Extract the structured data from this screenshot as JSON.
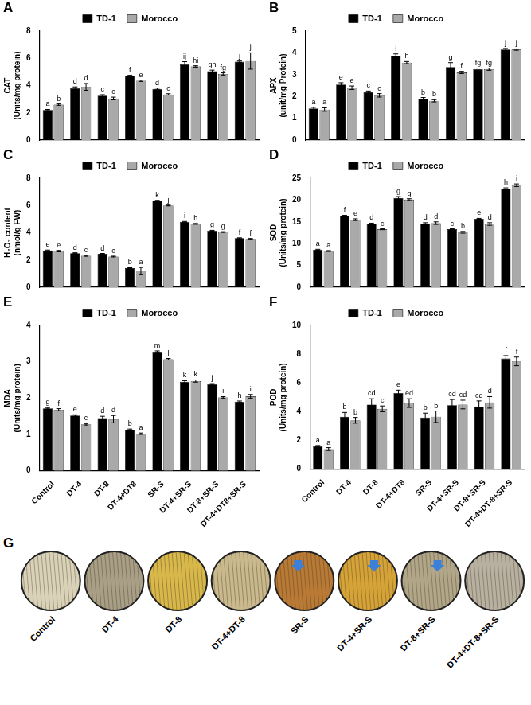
{
  "chart_data": [
    {
      "type": "bar",
      "panel": "A",
      "y_label": "CAT (Units/mg protein)",
      "categories": [
        null,
        null,
        null,
        null,
        null,
        null,
        null,
        null
      ],
      "series": [
        {
          "name": "TD-1",
          "color": "#000000",
          "values": [
            2.2,
            3.8,
            3.25,
            4.7,
            3.75,
            5.55,
            5.05,
            5.75
          ],
          "errors": [
            0.05,
            0.1,
            0.08,
            0.05,
            0.06,
            0.2,
            0.08,
            0.05
          ],
          "letters": [
            "a",
            "d",
            "c",
            "f",
            "d",
            "ij",
            "gh",
            "j"
          ]
        },
        {
          "name": "Morocco",
          "color": "#a9a9a9",
          "values": [
            2.6,
            3.9,
            3.05,
            4.35,
            3.35,
            5.4,
            4.85,
            5.8
          ],
          "errors": [
            0.05,
            0.25,
            0.1,
            0.05,
            0.05,
            0.05,
            0.08,
            0.6
          ],
          "letters": [
            "b",
            "d",
            "c",
            "e",
            "c",
            "hi",
            "fg",
            "j"
          ]
        }
      ],
      "ylim": [
        0,
        8
      ],
      "yticks": [
        0,
        2,
        4,
        6,
        8
      ],
      "grid": false,
      "legend": "top",
      "tick_labels": "y"
    },
    {
      "type": "bar",
      "panel": "B",
      "y_label": "APX (unit/mg Protein)",
      "categories": [
        null,
        null,
        null,
        null,
        null,
        null,
        null,
        null
      ],
      "series": [
        {
          "name": "TD-1",
          "color": "#000000",
          "values": [
            1.45,
            2.55,
            2.2,
            3.85,
            1.9,
            3.35,
            3.25,
            4.15
          ],
          "errors": [
            0.05,
            0.08,
            0.05,
            0.1,
            0.05,
            0.2,
            0.05,
            0.05
          ],
          "letters": [
            "a",
            "e",
            "c",
            "i",
            "b",
            "g",
            "fg",
            "j"
          ]
        },
        {
          "name": "Morocco",
          "color": "#a9a9a9",
          "values": [
            1.4,
            2.4,
            2.05,
            3.55,
            1.8,
            3.1,
            3.25,
            4.15
          ],
          "errors": [
            0.08,
            0.08,
            0.08,
            0.05,
            0.05,
            0.05,
            0.05,
            0.03
          ],
          "letters": [
            "a",
            "e",
            "c",
            "h",
            "b",
            "f",
            "fg",
            "j"
          ]
        }
      ],
      "ylim": [
        0,
        5
      ],
      "yticks": [
        0,
        1,
        2,
        3,
        4,
        5
      ],
      "grid": false,
      "legend": "top",
      "tick_labels": "y"
    },
    {
      "type": "bar",
      "panel": "C",
      "y_label": "H₂O₂ content (nmol/g FW)",
      "categories": [
        null,
        null,
        null,
        null,
        null,
        null,
        null,
        null
      ],
      "series": [
        {
          "name": "TD-1",
          "color": "#000000",
          "values": [
            2.7,
            2.5,
            2.45,
            1.4,
            6.35,
            4.8,
            4.15,
            3.6
          ],
          "errors": [
            0.03,
            0.03,
            0.03,
            0.03,
            0.03,
            0.03,
            0.03,
            0.03
          ],
          "letters": [
            "e",
            "d",
            "d",
            "b",
            "k",
            "i",
            "g",
            "f"
          ]
        },
        {
          "name": "Morocco",
          "color": "#a9a9a9",
          "values": [
            2.65,
            2.3,
            2.25,
            1.2,
            6.0,
            4.65,
            4.05,
            3.55
          ],
          "errors": [
            0.05,
            0.03,
            0.03,
            0.25,
            0.03,
            0.03,
            0.03,
            0.03
          ],
          "letters": [
            "e",
            "c",
            "c",
            "a",
            "j",
            "h",
            "g",
            "f"
          ]
        }
      ],
      "ylim": [
        0,
        8
      ],
      "yticks": [
        0,
        2,
        4,
        6,
        8
      ],
      "grid": false,
      "legend": "top",
      "tick_labels": "y"
    },
    {
      "type": "bar",
      "panel": "D",
      "y_label": "SOD (Units/mg protein)",
      "categories": [
        null,
        null,
        null,
        null,
        null,
        null,
        null,
        null
      ],
      "series": [
        {
          "name": "TD-1",
          "color": "#000000",
          "values": [
            8.6,
            16.4,
            14.6,
            20.5,
            14.6,
            13.3,
            15.7,
            22.6
          ],
          "errors": [
            0.1,
            0.1,
            0.1,
            0.3,
            0.2,
            0.1,
            0.1,
            0.2
          ],
          "letters": [
            "a",
            "f",
            "d",
            "g",
            "d",
            "c",
            "e",
            "h"
          ]
        },
        {
          "name": "Morocco",
          "color": "#a9a9a9",
          "values": [
            8.3,
            15.5,
            13.3,
            20.1,
            14.7,
            12.6,
            14.5,
            23.4
          ],
          "errors": [
            0.1,
            0.2,
            0.1,
            0.2,
            0.3,
            0.2,
            0.3,
            0.3
          ],
          "letters": [
            "a",
            "e",
            "c",
            "g",
            "d",
            "b",
            "d",
            "i"
          ]
        }
      ],
      "ylim": [
        0,
        25
      ],
      "yticks": [
        0,
        5,
        10,
        15,
        20,
        25
      ],
      "grid": false,
      "legend": "top",
      "tick_labels": "y"
    },
    {
      "type": "bar",
      "panel": "E",
      "y_label": "MDA (Units/mg protein)",
      "categories": [
        "Control",
        "DT-4",
        "DT-8",
        "DT-4+DT8",
        "SR-S",
        "DT-4+SR-S",
        "DT-8+SR-S",
        "DT-4+DT8+SR-S"
      ],
      "series": [
        {
          "name": "TD-1",
          "color": "#000000",
          "values": [
            1.72,
            1.52,
            1.45,
            1.13,
            3.28,
            2.45,
            2.38,
            1.9
          ],
          "errors": [
            0.02,
            0.02,
            0.05,
            0.02,
            0.02,
            0.03,
            0.02,
            0.02
          ],
          "letters": [
            "g",
            "e",
            "d",
            "b",
            "m",
            "k",
            "j",
            "h"
          ]
        },
        {
          "name": "Morocco",
          "color": "#a9a9a9",
          "values": [
            1.68,
            1.28,
            1.42,
            1.02,
            3.07,
            2.47,
            2.02,
            2.05
          ],
          "errors": [
            0.03,
            0.02,
            0.1,
            0.02,
            0.02,
            0.03,
            0.02,
            0.05
          ],
          "letters": [
            "f",
            "c",
            "d",
            "a",
            "l",
            "k",
            "i",
            "i"
          ]
        }
      ],
      "ylim": [
        0,
        4
      ],
      "yticks": [
        0,
        1,
        2,
        3,
        4
      ],
      "grid": false,
      "legend": "top",
      "tick_labels": true
    },
    {
      "type": "bar",
      "panel": "F",
      "y_label": "POD (Units/mg protein)",
      "categories": [
        "Control",
        "DT-4",
        "DT-8",
        "DT-4+DT8",
        "SR-S",
        "DT-4+SR-S",
        "DT-8+SR-S",
        "DT-4+DT-8+SR-S"
      ],
      "series": [
        {
          "name": "TD-1",
          "color": "#000000",
          "values": [
            1.6,
            3.65,
            4.5,
            5.3,
            3.6,
            4.45,
            4.35,
            7.7
          ],
          "errors": [
            0.05,
            0.3,
            0.4,
            0.2,
            0.3,
            0.4,
            0.4,
            0.2
          ],
          "letters": [
            "a",
            "b",
            "cd",
            "e",
            "b",
            "cd",
            "cd",
            "f"
          ]
        },
        {
          "name": "Morocco",
          "color": "#a9a9a9",
          "values": [
            1.4,
            3.4,
            4.2,
            4.6,
            3.65,
            4.5,
            4.65,
            7.5
          ],
          "errors": [
            0.1,
            0.2,
            0.2,
            0.3,
            0.4,
            0.3,
            0.4,
            0.3
          ],
          "letters": [
            "a",
            "b",
            "c",
            "ed",
            "b",
            "cd",
            "d",
            "f"
          ]
        }
      ],
      "ylim": [
        0,
        10
      ],
      "yticks": [
        0,
        2,
        4,
        6,
        8,
        10
      ],
      "grid": false,
      "legend": "top",
      "tick_labels": true
    }
  ],
  "panel_g": {
    "panel": "G",
    "labels": [
      "Control",
      "DT-4",
      "DT-8",
      "DT-4+DT-8",
      "SR-S",
      "DT-4+SR-S",
      "DT-8+SR-S",
      "DT-4+DT-8+SR-S"
    ]
  }
}
